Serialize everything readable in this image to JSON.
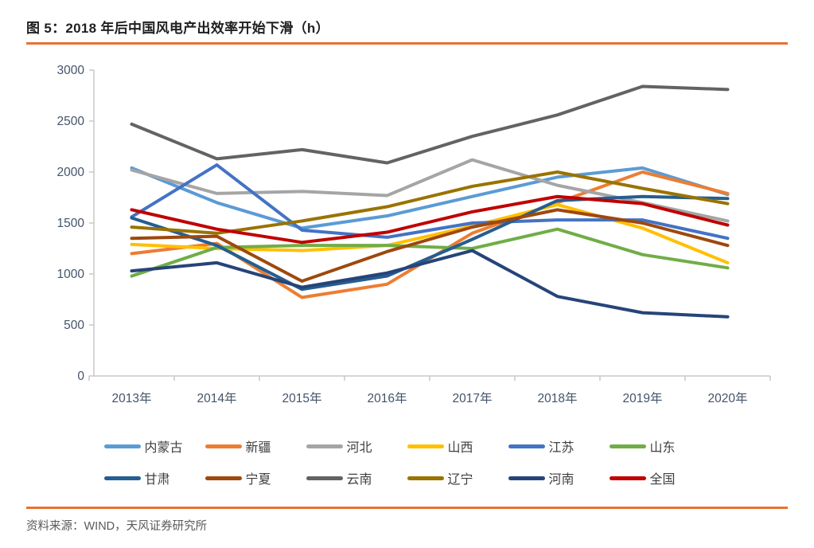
{
  "header": {
    "title": "图 5：2018 年后中国风电产出效率开始下滑（h）"
  },
  "footer": {
    "source": "资料来源：WIND，天风证券研究所"
  },
  "accent_color": "#E97132",
  "chart_data": {
    "type": "line",
    "title": "图 5：2018 年后中国风电产出效率开始下滑（h）",
    "xlabel": "",
    "ylabel": "",
    "categories": [
      "2013年",
      "2014年",
      "2015年",
      "2016年",
      "2017年",
      "2018年",
      "2019年",
      "2020年"
    ],
    "ylim": [
      0,
      3000
    ],
    "ytick_step": 500,
    "grid": false,
    "legend_position": "bottom",
    "axis_label_color": "#44546A",
    "axis_line_color": "#C9C9C9",
    "series": [
      {
        "name": "内蒙古",
        "color": "#5B9BD5",
        "values": [
          2040,
          1700,
          1450,
          1570,
          1760,
          1950,
          2040,
          1780
        ]
      },
      {
        "name": "新疆",
        "color": "#ED7D31",
        "values": [
          1200,
          1300,
          770,
          900,
          1400,
          1700,
          2000,
          1790
        ]
      },
      {
        "name": "河北",
        "color": "#A5A5A5",
        "values": [
          2020,
          1790,
          1810,
          1770,
          2120,
          1870,
          1700,
          1520
        ]
      },
      {
        "name": "山西",
        "color": "#FFC000",
        "values": [
          1290,
          1250,
          1230,
          1280,
          1470,
          1680,
          1450,
          1110
        ]
      },
      {
        "name": "江苏",
        "color": "#4472C4",
        "values": [
          1560,
          2070,
          1430,
          1360,
          1500,
          1530,
          1530,
          1350
        ]
      },
      {
        "name": "山东",
        "color": "#70AD47",
        "values": [
          980,
          1260,
          1280,
          1280,
          1250,
          1440,
          1190,
          1060
        ]
      },
      {
        "name": "甘肃",
        "color": "#255E91",
        "values": [
          1550,
          1280,
          850,
          980,
          1340,
          1720,
          1760,
          1740
        ]
      },
      {
        "name": "宁夏",
        "color": "#9E480E",
        "values": [
          1350,
          1370,
          930,
          1220,
          1460,
          1630,
          1500,
          1280
        ]
      },
      {
        "name": "云南",
        "color": "#636363",
        "values": [
          2470,
          2130,
          2220,
          2090,
          2350,
          2560,
          2840,
          2810
        ]
      },
      {
        "name": "辽宁",
        "color": "#997300",
        "values": [
          1460,
          1400,
          1520,
          1660,
          1860,
          2000,
          1840,
          1690
        ]
      },
      {
        "name": "河南",
        "color": "#264478",
        "values": [
          1030,
          1110,
          870,
          1010,
          1230,
          780,
          620,
          580
        ]
      },
      {
        "name": "全国",
        "color": "#C00000",
        "values": [
          1630,
          1440,
          1310,
          1410,
          1610,
          1760,
          1690,
          1480
        ]
      }
    ]
  }
}
